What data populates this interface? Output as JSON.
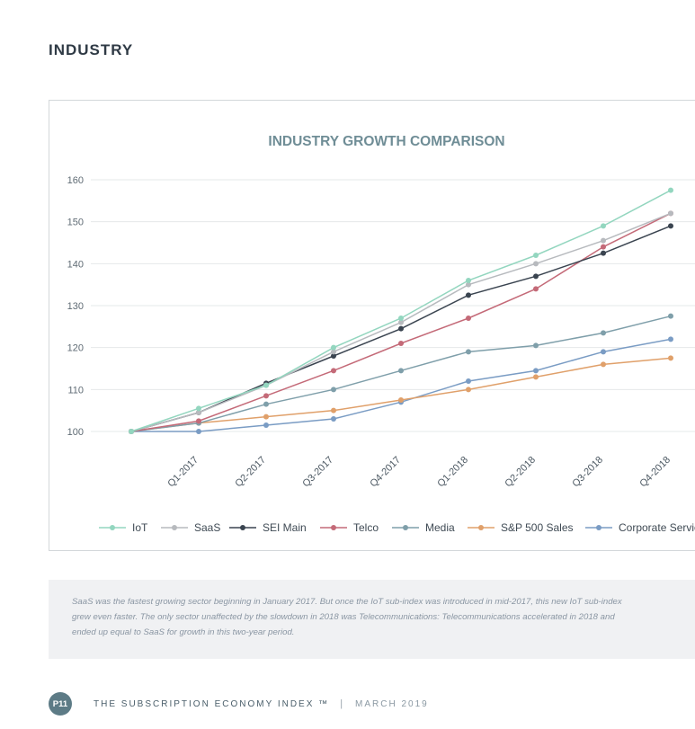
{
  "page": {
    "section_title": "INDUSTRY",
    "caption_lines": [
      "SaaS was the fastest growing sector beginning in January 2017. But once the IoT sub-index was introduced in mid-2017, this new IoT sub-index",
      "grew even faster. The only sector unaffected by the slowdown in 2018 was Telecommunications: Telecommunications accelerated in 2018 and",
      "ended up equal to SaaS for growth in this two-year period."
    ],
    "footer": {
      "page_number": "P11",
      "publication": "THE SUBSCRIPTION ECONOMY INDEX ™",
      "separator": "|",
      "date": "MARCH 2019"
    }
  },
  "chart_data": {
    "type": "line",
    "title": "INDUSTRY GROWTH COMPARISON",
    "xlabel": "",
    "ylabel": "",
    "categories": [
      "",
      "Q1-2017",
      "Q2-2017",
      "Q3-2017",
      "Q4-2017",
      "Q1-2018",
      "Q2-2018",
      "Q3-2018",
      "Q4-2018"
    ],
    "yticks": [
      100,
      110,
      120,
      130,
      140,
      150,
      160
    ],
    "ylim": [
      100,
      160
    ],
    "grid": true,
    "legend_position": "bottom",
    "series": [
      {
        "name": "IoT",
        "color": "#93d6bf",
        "values": [
          100,
          105.5,
          111,
          120,
          127,
          136,
          142,
          149,
          157.5
        ]
      },
      {
        "name": "SaaS",
        "color": "#b7babe",
        "values": [
          100,
          104.5,
          111,
          119,
          126,
          135,
          140,
          145.5,
          152
        ]
      },
      {
        "name": "SEI Main",
        "color": "#3a4450",
        "values": [
          100,
          104.5,
          111.5,
          118,
          124.5,
          132.5,
          137,
          142.5,
          149
        ]
      },
      {
        "name": "Telco",
        "color": "#c46a78",
        "values": [
          100,
          102.5,
          108.5,
          114.5,
          121,
          127,
          134,
          144,
          152
        ]
      },
      {
        "name": "Media",
        "color": "#7f9faa",
        "values": [
          100,
          102,
          106.5,
          110,
          114.5,
          119,
          120.5,
          123.5,
          127.5
        ]
      },
      {
        "name": "S&P 500 Sales",
        "color": "#e0a06a",
        "values": [
          100,
          102,
          103.5,
          105,
          107.5,
          110,
          113,
          116,
          117.5
        ]
      },
      {
        "name": "Corporate Services",
        "color": "#7a9cc4",
        "values": [
          100,
          100,
          101.5,
          103,
          107,
          112,
          114.5,
          119,
          122
        ]
      }
    ]
  }
}
